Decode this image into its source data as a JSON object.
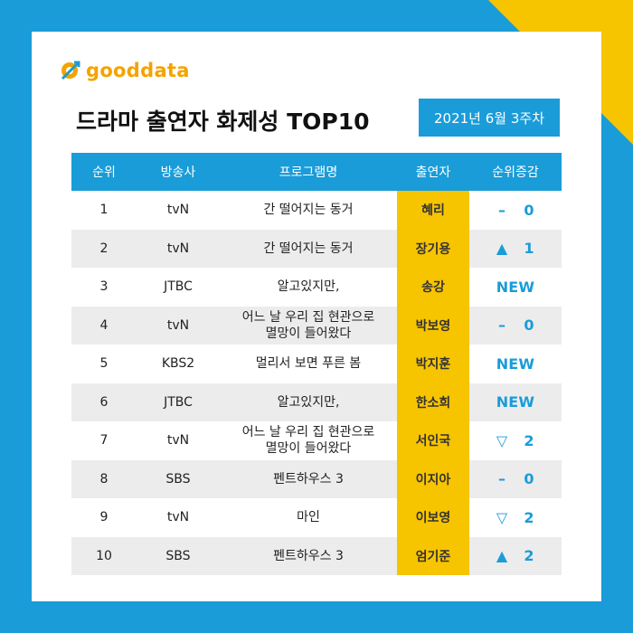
{
  "logo": {
    "text": "gooddata"
  },
  "title": "드라마 출연자 화제성 TOP10",
  "date": "2021년 6월 3주차",
  "table": {
    "headers": [
      "순위",
      "방송사",
      "프로그램명",
      "출연자",
      "순위증감"
    ],
    "rows": [
      {
        "rank": "1",
        "broadcaster": "tvN",
        "program": "간 떨어지는 동거",
        "actor": "혜리",
        "change_symbol": "–",
        "change_value": "0"
      },
      {
        "rank": "2",
        "broadcaster": "tvN",
        "program": "간 떨어지는 동거",
        "actor": "장기용",
        "change_symbol": "▲",
        "change_value": "1"
      },
      {
        "rank": "3",
        "broadcaster": "JTBC",
        "program": "알고있지만,",
        "actor": "송강",
        "change_symbol": "",
        "change_value": "NEW"
      },
      {
        "rank": "4",
        "broadcaster": "tvN",
        "program": "어느 날 우리 집 현관으로\n멸망이 들어왔다",
        "actor": "박보영",
        "change_symbol": "–",
        "change_value": "0"
      },
      {
        "rank": "5",
        "broadcaster": "KBS2",
        "program": "멀리서 보면 푸른 봄",
        "actor": "박지훈",
        "change_symbol": "",
        "change_value": "NEW"
      },
      {
        "rank": "6",
        "broadcaster": "JTBC",
        "program": "알고있지만,",
        "actor": "한소희",
        "change_symbol": "",
        "change_value": "NEW"
      },
      {
        "rank": "7",
        "broadcaster": "tvN",
        "program": "어느 날 우리 집 현관으로\n멸망이 들어왔다",
        "actor": "서인국",
        "change_symbol": "▽",
        "change_value": "2"
      },
      {
        "rank": "8",
        "broadcaster": "SBS",
        "program": "펜트하우스 3",
        "actor": "이지아",
        "change_symbol": "–",
        "change_value": "0"
      },
      {
        "rank": "9",
        "broadcaster": "tvN",
        "program": "마인",
        "actor": "이보영",
        "change_symbol": "▽",
        "change_value": "2"
      },
      {
        "rank": "10",
        "broadcaster": "SBS",
        "program": "펜트하우스 3",
        "actor": "엄기준",
        "change_symbol": "▲",
        "change_value": "2"
      }
    ]
  },
  "colors": {
    "background_blue": "#1a9cd8",
    "accent_yellow": "#f7c400",
    "logo_orange": "#f4a300",
    "row_stripe": "#ececec"
  }
}
